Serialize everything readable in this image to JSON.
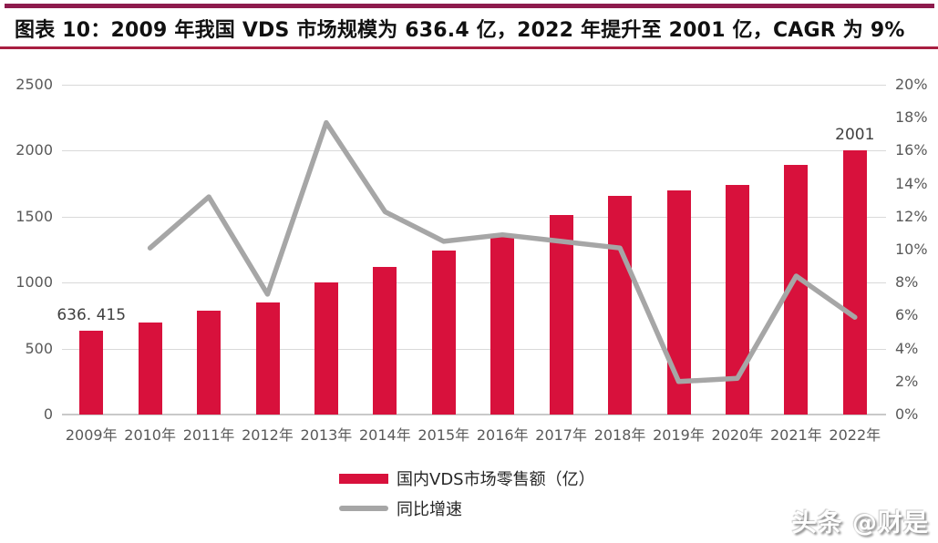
{
  "header": {
    "title": "图表 10：2009 年我国 VDS 市场规模为 636.4 亿，2022 年提升至 2001 亿，CAGR 为 9%"
  },
  "chart_data": {
    "type": "bar",
    "subtype": "bar-with-line-dual-axis",
    "categories": [
      "2009年",
      "2010年",
      "2011年",
      "2012年",
      "2013年",
      "2014年",
      "2015年",
      "2016年",
      "2017年",
      "2018年",
      "2019年",
      "2020年",
      "2021年",
      "2022年"
    ],
    "series": [
      {
        "name": "国内VDS市场零售额（亿）",
        "type": "bar",
        "axis": "left",
        "color": "#D8113C",
        "values": [
          636.415,
          700,
          790,
          848,
          1000,
          1120,
          1240,
          1360,
          1510,
          1660,
          1700,
          1740,
          1890,
          2001
        ]
      },
      {
        "name": "同比增速",
        "type": "line",
        "axis": "right",
        "unit": "%",
        "color": "#A6A6A6",
        "values": [
          null,
          10.1,
          13.2,
          7.3,
          17.7,
          12.3,
          10.5,
          10.9,
          10.5,
          10.1,
          2.0,
          2.2,
          8.4,
          5.9
        ]
      }
    ],
    "left_axis": {
      "min": 0,
      "max": 2500,
      "ticks": [
        "0",
        "500",
        "1000",
        "1500",
        "2000",
        "2500"
      ]
    },
    "right_axis": {
      "min": 0,
      "max": 20,
      "ticks": [
        "0%",
        "2%",
        "4%",
        "6%",
        "8%",
        "10%",
        "12%",
        "14%",
        "16%",
        "18%",
        "20%"
      ]
    },
    "data_labels": [
      {
        "index": 0,
        "text": "636. 415"
      },
      {
        "index": 13,
        "text": "2001"
      }
    ],
    "grid": "horizontal-on",
    "legend_position": "bottom-center"
  },
  "legend": {
    "bar_label": "国内VDS市场零售额（亿）",
    "line_label": "同比增速"
  },
  "watermark": {
    "text": "头条 @财是"
  },
  "colors": {
    "bar": "#D8113C",
    "line": "#A6A6A6",
    "top_rule": "#8E1B4D",
    "title_rule": "#A81E41",
    "gridline": "#D9D9D9",
    "axis_text": "#595959"
  }
}
